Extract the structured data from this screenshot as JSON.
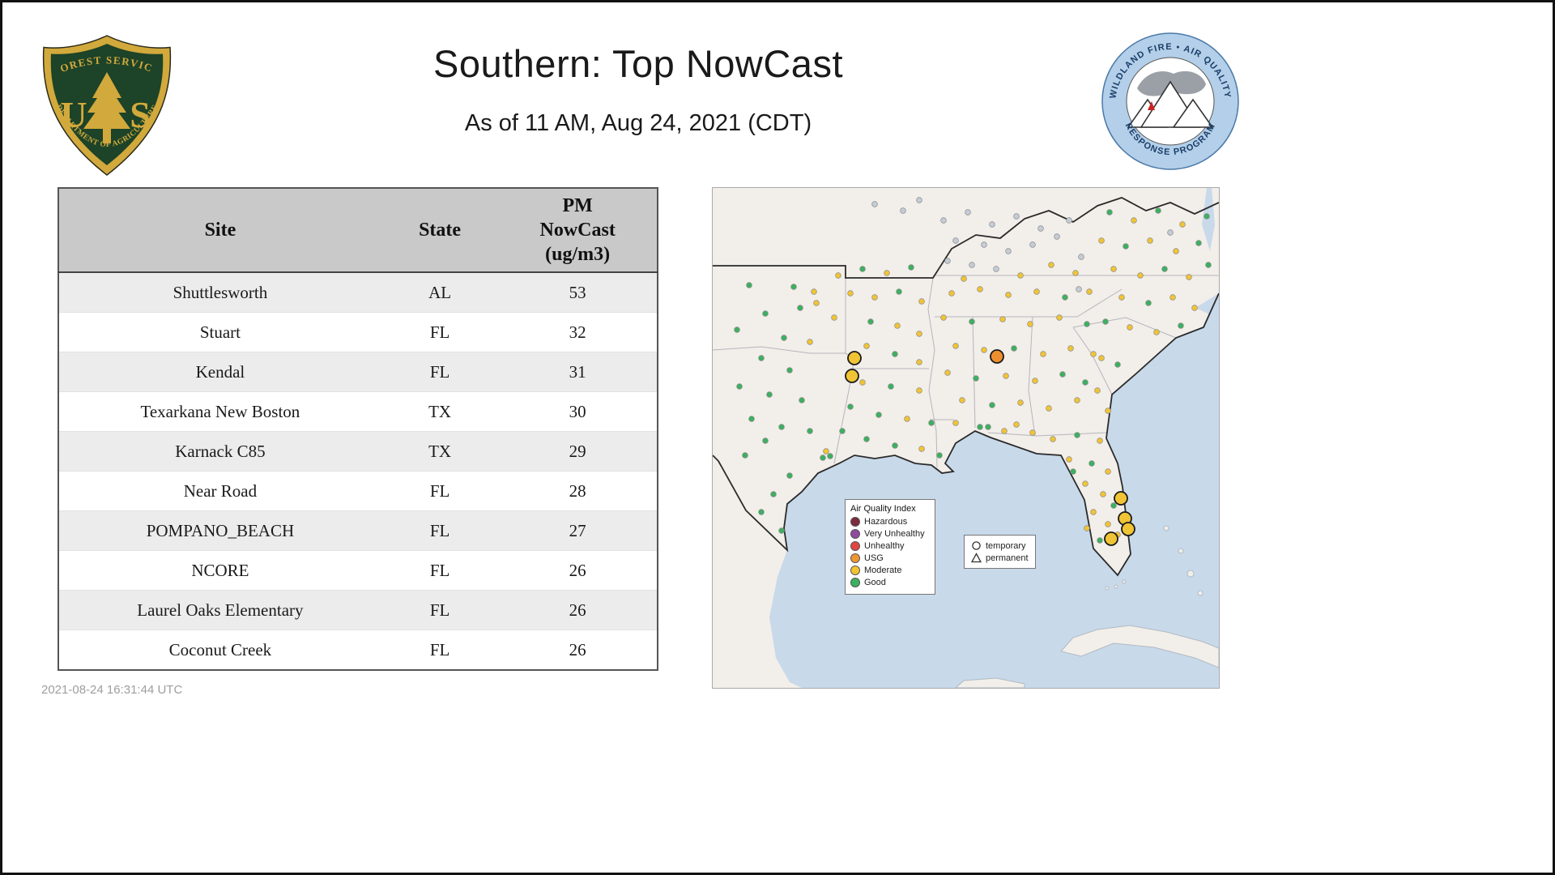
{
  "page": {
    "title": "Southern: Top NowCast",
    "subtitle": "As of 11 AM, Aug 24, 2021 (CDT)",
    "timestamp": "2021-08-24 16:31:44 UTC"
  },
  "logos": {
    "forest_service": {
      "arc_top": "FOREST SERVICE",
      "letter_u": "U",
      "letter_s": "S",
      "arc_bottom": "DEPARTMENT OF AGRICULTURE"
    },
    "wfaqrp": {
      "arc_top": "WILDLAND FIRE • AIR QUALITY",
      "arc_bottom": "RESPONSE PROGRAM"
    }
  },
  "table": {
    "columns": [
      "Site",
      "State",
      "PM NowCast (ug/m3)"
    ],
    "rows": [
      {
        "site": "Shuttlesworth",
        "state": "AL",
        "value": "53"
      },
      {
        "site": "Stuart",
        "state": "FL",
        "value": "32"
      },
      {
        "site": "Kendal",
        "state": "FL",
        "value": "31"
      },
      {
        "site": "Texarkana New Boston",
        "state": "TX",
        "value": "30"
      },
      {
        "site": "Karnack C85",
        "state": "TX",
        "value": "29"
      },
      {
        "site": "Near Road",
        "state": "FL",
        "value": "28"
      },
      {
        "site": "POMPANO_BEACH",
        "state": "FL",
        "value": "27"
      },
      {
        "site": "NCORE",
        "state": "FL",
        "value": "26"
      },
      {
        "site": "Laurel Oaks Elementary",
        "state": "FL",
        "value": "26"
      },
      {
        "site": "Coconut Creek",
        "state": "FL",
        "value": "26"
      }
    ]
  },
  "map": {
    "aqi_legend": {
      "title": "Air Quality Index",
      "items": [
        {
          "label": "Hazardous",
          "color": "#7e2b3e"
        },
        {
          "label": "Very Unhealthy",
          "color": "#8f4a9e"
        },
        {
          "label": "Unhealthy",
          "color": "#e04642"
        },
        {
          "label": "USG",
          "color": "#ef9733"
        },
        {
          "label": "Moderate",
          "color": "#f2c431"
        },
        {
          "label": "Good",
          "color": "#3cb060"
        }
      ]
    },
    "marker_legend": {
      "temporary": "temporary",
      "permanent": "permanent"
    },
    "colors": {
      "g": "#3cb060",
      "y": "#f0c434",
      "e": "#c4ccd6",
      "o": "#ed8f2f"
    },
    "points": [
      [
        45,
        120,
        "g"
      ],
      [
        100,
        122,
        "g"
      ],
      [
        125,
        128,
        "y"
      ],
      [
        128,
        142,
        "y"
      ],
      [
        108,
        148,
        "g"
      ],
      [
        65,
        155,
        "g"
      ],
      [
        30,
        175,
        "g"
      ],
      [
        88,
        185,
        "g"
      ],
      [
        120,
        190,
        "y"
      ],
      [
        60,
        210,
        "g"
      ],
      [
        95,
        225,
        "g"
      ],
      [
        33,
        245,
        "g"
      ],
      [
        70,
        255,
        "g"
      ],
      [
        110,
        262,
        "g"
      ],
      [
        48,
        285,
        "g"
      ],
      [
        85,
        295,
        "g"
      ],
      [
        120,
        300,
        "g"
      ],
      [
        65,
        312,
        "g"
      ],
      [
        140,
        325,
        "y"
      ],
      [
        145,
        331,
        "g"
      ],
      [
        136,
        333,
        "g"
      ],
      [
        95,
        355,
        "g"
      ],
      [
        75,
        378,
        "g"
      ],
      [
        60,
        400,
        "g"
      ],
      [
        85,
        423,
        "g"
      ],
      [
        40,
        330,
        "g"
      ],
      [
        155,
        108,
        "y"
      ],
      [
        185,
        100,
        "g"
      ],
      [
        215,
        105,
        "y"
      ],
      [
        245,
        98,
        "g"
      ],
      [
        170,
        130,
        "y"
      ],
      [
        200,
        135,
        "y"
      ],
      [
        230,
        128,
        "g"
      ],
      [
        258,
        140,
        "y"
      ],
      [
        150,
        160,
        "y"
      ],
      [
        195,
        165,
        "g"
      ],
      [
        228,
        170,
        "y"
      ],
      [
        255,
        180,
        "y"
      ],
      [
        190,
        195,
        "y"
      ],
      [
        225,
        205,
        "g"
      ],
      [
        255,
        215,
        "y"
      ],
      [
        185,
        240,
        "y"
      ],
      [
        220,
        245,
        "g"
      ],
      [
        255,
        250,
        "y"
      ],
      [
        170,
        270,
        "g"
      ],
      [
        205,
        280,
        "g"
      ],
      [
        240,
        285,
        "y"
      ],
      [
        270,
        290,
        "g"
      ],
      [
        190,
        310,
        "g"
      ],
      [
        225,
        318,
        "g"
      ],
      [
        258,
        322,
        "y"
      ],
      [
        280,
        330,
        "g"
      ],
      [
        160,
        300,
        "g"
      ],
      [
        200,
        20,
        "e"
      ],
      [
        235,
        28,
        "e"
      ],
      [
        255,
        15,
        "e"
      ],
      [
        285,
        40,
        "e"
      ],
      [
        315,
        30,
        "e"
      ],
      [
        345,
        45,
        "e"
      ],
      [
        375,
        35,
        "e"
      ],
      [
        405,
        50,
        "e"
      ],
      [
        300,
        65,
        "e"
      ],
      [
        335,
        70,
        "e"
      ],
      [
        365,
        78,
        "e"
      ],
      [
        395,
        70,
        "e"
      ],
      [
        425,
        60,
        "e"
      ],
      [
        290,
        90,
        "e"
      ],
      [
        320,
        95,
        "e"
      ],
      [
        350,
        100,
        "e"
      ],
      [
        440,
        40,
        "e"
      ],
      [
        455,
        85,
        "e"
      ],
      [
        418,
        95,
        "y"
      ],
      [
        448,
        105,
        "y"
      ],
      [
        310,
        112,
        "y"
      ],
      [
        380,
        108,
        "y"
      ],
      [
        295,
        130,
        "y"
      ],
      [
        330,
        125,
        "y"
      ],
      [
        365,
        132,
        "y"
      ],
      [
        400,
        128,
        "y"
      ],
      [
        435,
        135,
        "g"
      ],
      [
        465,
        128,
        "y"
      ],
      [
        285,
        160,
        "y"
      ],
      [
        320,
        165,
        "g"
      ],
      [
        358,
        162,
        "y"
      ],
      [
        392,
        168,
        "y"
      ],
      [
        428,
        160,
        "y"
      ],
      [
        462,
        168,
        "g"
      ],
      [
        300,
        195,
        "y"
      ],
      [
        335,
        200,
        "y"
      ],
      [
        372,
        198,
        "g"
      ],
      [
        408,
        205,
        "y"
      ],
      [
        442,
        198,
        "y"
      ],
      [
        470,
        205,
        "y"
      ],
      [
        290,
        228,
        "y"
      ],
      [
        325,
        235,
        "g"
      ],
      [
        362,
        232,
        "y"
      ],
      [
        398,
        238,
        "y"
      ],
      [
        432,
        230,
        "g"
      ],
      [
        308,
        262,
        "y"
      ],
      [
        345,
        268,
        "g"
      ],
      [
        380,
        265,
        "y"
      ],
      [
        415,
        272,
        "y"
      ],
      [
        450,
        262,
        "y"
      ],
      [
        300,
        290,
        "y"
      ],
      [
        340,
        295,
        "g"
      ],
      [
        375,
        292,
        "y"
      ],
      [
        490,
        30,
        "g"
      ],
      [
        520,
        40,
        "y"
      ],
      [
        550,
        28,
        "g"
      ],
      [
        580,
        45,
        "y"
      ],
      [
        610,
        35,
        "g"
      ],
      [
        565,
        55,
        "e"
      ],
      [
        480,
        65,
        "y"
      ],
      [
        510,
        72,
        "g"
      ],
      [
        540,
        65,
        "y"
      ],
      [
        572,
        78,
        "y"
      ],
      [
        600,
        68,
        "g"
      ],
      [
        495,
        100,
        "y"
      ],
      [
        528,
        108,
        "y"
      ],
      [
        558,
        100,
        "g"
      ],
      [
        588,
        110,
        "y"
      ],
      [
        612,
        95,
        "g"
      ],
      [
        505,
        135,
        "y"
      ],
      [
        538,
        142,
        "g"
      ],
      [
        568,
        135,
        "y"
      ],
      [
        595,
        148,
        "y"
      ],
      [
        452,
        125,
        "e"
      ],
      [
        485,
        165,
        "g"
      ],
      [
        515,
        172,
        "y"
      ],
      [
        548,
        178,
        "y"
      ],
      [
        578,
        170,
        "g"
      ],
      [
        480,
        210,
        "y"
      ],
      [
        500,
        218,
        "g"
      ],
      [
        475,
        250,
        "y"
      ],
      [
        488,
        275,
        "y"
      ],
      [
        460,
        240,
        "g"
      ],
      [
        420,
        310,
        "y"
      ],
      [
        450,
        305,
        "g"
      ],
      [
        478,
        312,
        "y"
      ],
      [
        440,
        335,
        "y"
      ],
      [
        468,
        340,
        "g"
      ],
      [
        488,
        350,
        "y"
      ],
      [
        460,
        365,
        "y"
      ],
      [
        482,
        378,
        "y"
      ],
      [
        495,
        392,
        "g"
      ],
      [
        470,
        400,
        "y"
      ],
      [
        488,
        415,
        "y"
      ],
      [
        500,
        428,
        "y"
      ],
      [
        478,
        435,
        "g"
      ],
      [
        462,
        420,
        "y"
      ],
      [
        445,
        350,
        "g"
      ],
      [
        360,
        300,
        "y"
      ],
      [
        330,
        295,
        "g"
      ],
      [
        395,
        302,
        "y"
      ]
    ],
    "large_points": [
      [
        175,
        210,
        "y"
      ],
      [
        172,
        232,
        "y"
      ],
      [
        351,
        208,
        "o"
      ],
      [
        504,
        383,
        "y"
      ],
      [
        509,
        408,
        "y"
      ],
      [
        513,
        421,
        "y"
      ],
      [
        492,
        433,
        "y"
      ]
    ]
  }
}
